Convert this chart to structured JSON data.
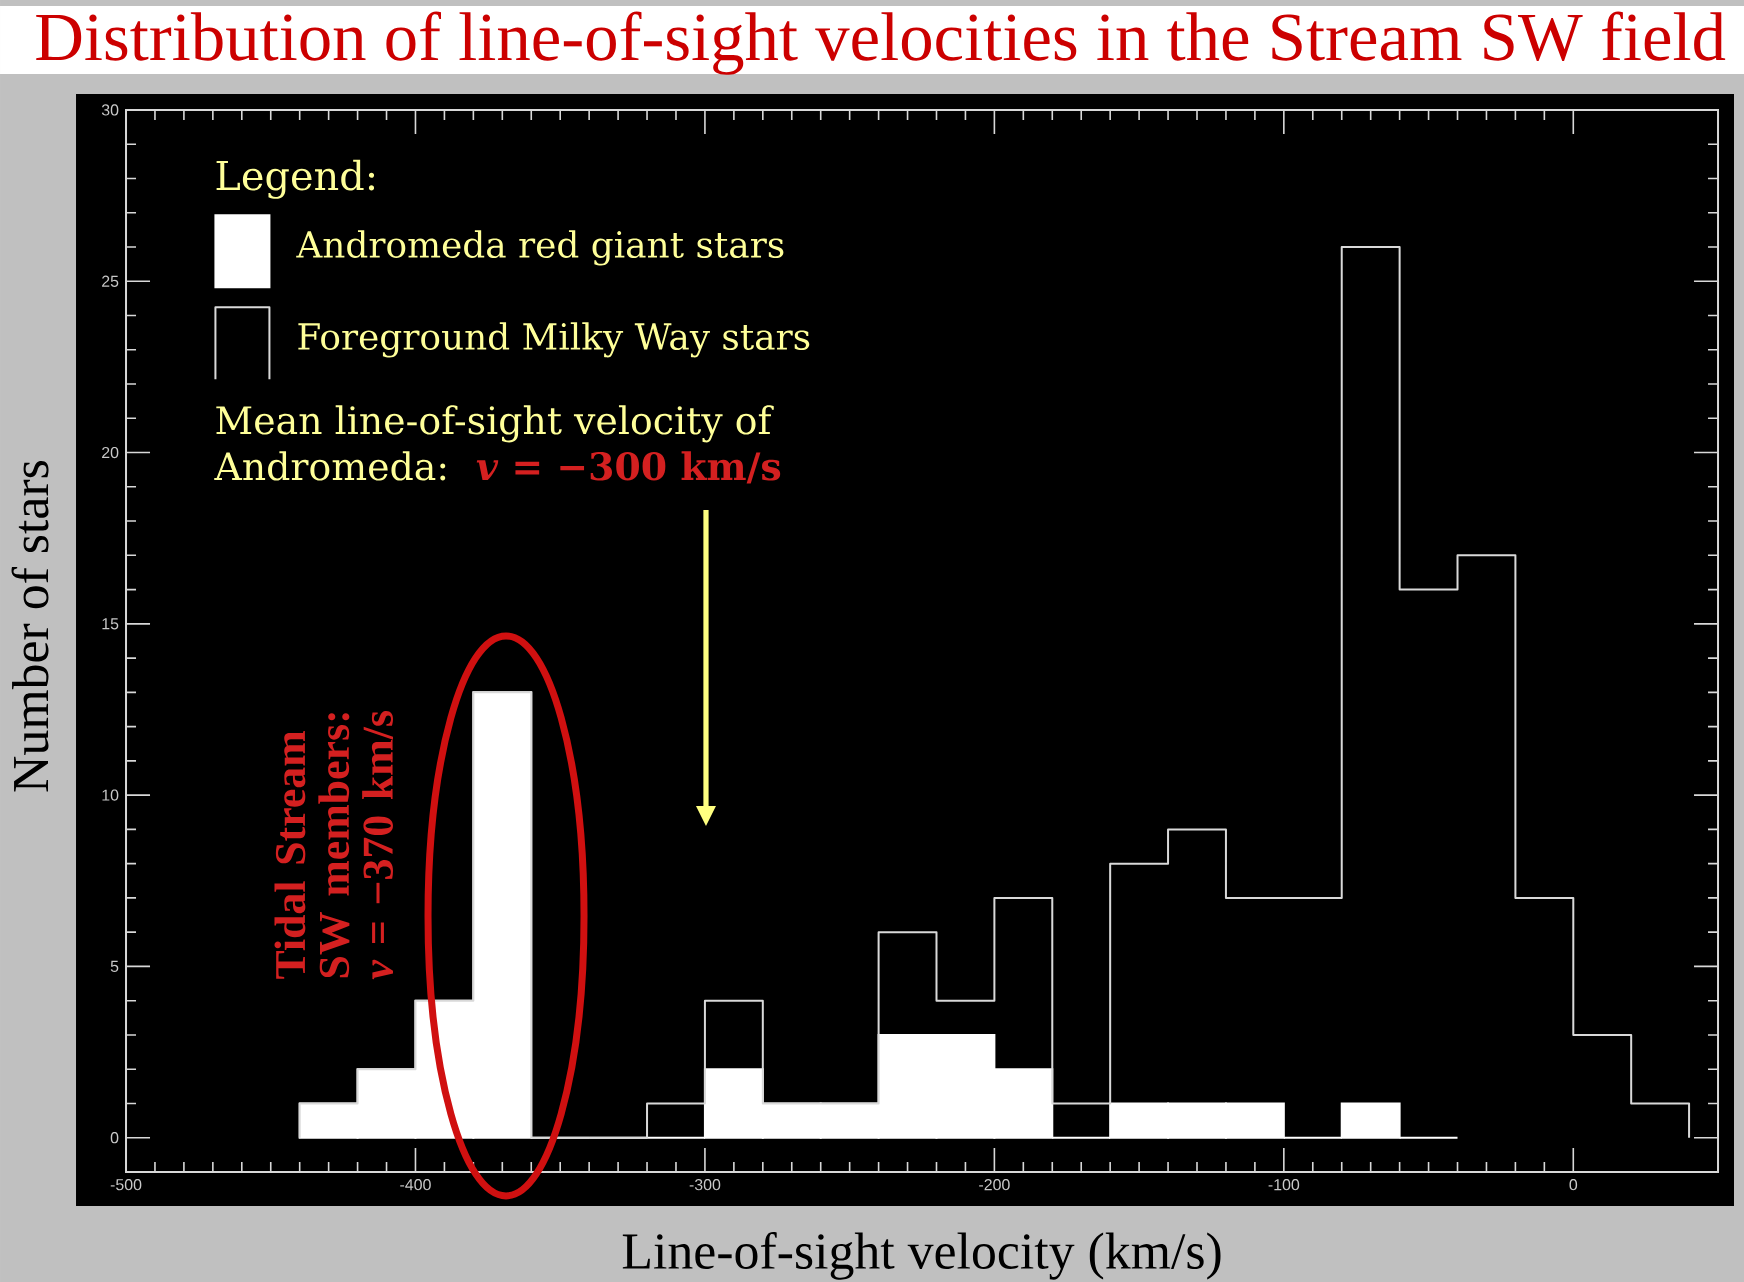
{
  "chart_data": {
    "type": "histogram",
    "title": "Distribution of line-of-sight velocities in the Stream SW field",
    "xlabel": "Line-of-sight velocity (km/s)",
    "ylabel": "Number of stars",
    "legend_title": "Legend:",
    "bins": [
      -440,
      -420,
      -400,
      -380,
      -360,
      -340,
      -320,
      -300,
      -280,
      -260,
      -240,
      -220,
      -200,
      -180,
      -160,
      -140,
      -120,
      -100,
      -80,
      -60,
      -40,
      -20,
      0,
      20,
      40
    ],
    "series": [
      {
        "name": "Andromeda red giant stars",
        "color": "#ffffff",
        "values": [
          1,
          2,
          4,
          13,
          0,
          0,
          0,
          2,
          1,
          1,
          3,
          3,
          2,
          0,
          1,
          1,
          1,
          0,
          1,
          0,
          null,
          null,
          null,
          null
        ]
      },
      {
        "name": "Foreground Milky Way stars",
        "color": "#d9d9d9",
        "values": [
          1,
          2,
          4,
          13,
          0,
          0,
          1,
          4,
          1,
          1,
          6,
          4,
          7,
          1,
          8,
          9,
          7,
          7,
          26,
          16,
          17,
          7,
          3,
          1
        ]
      }
    ],
    "xlim": [
      -500,
      50
    ],
    "ylim": [
      -1,
      30
    ],
    "xticks": [
      -500,
      -400,
      -300,
      -200,
      -100,
      0
    ],
    "yticks": [
      0,
      5,
      10,
      15,
      20,
      25,
      30
    ],
    "legend": "top left",
    "annotations": [
      "Mean line-of-sight velocity of",
      "Andromeda:",
      "*v* = −300 km/s",
      "Tidal Stream SW members:",
      "*v* = −370 km/s"
    ]
  }
}
